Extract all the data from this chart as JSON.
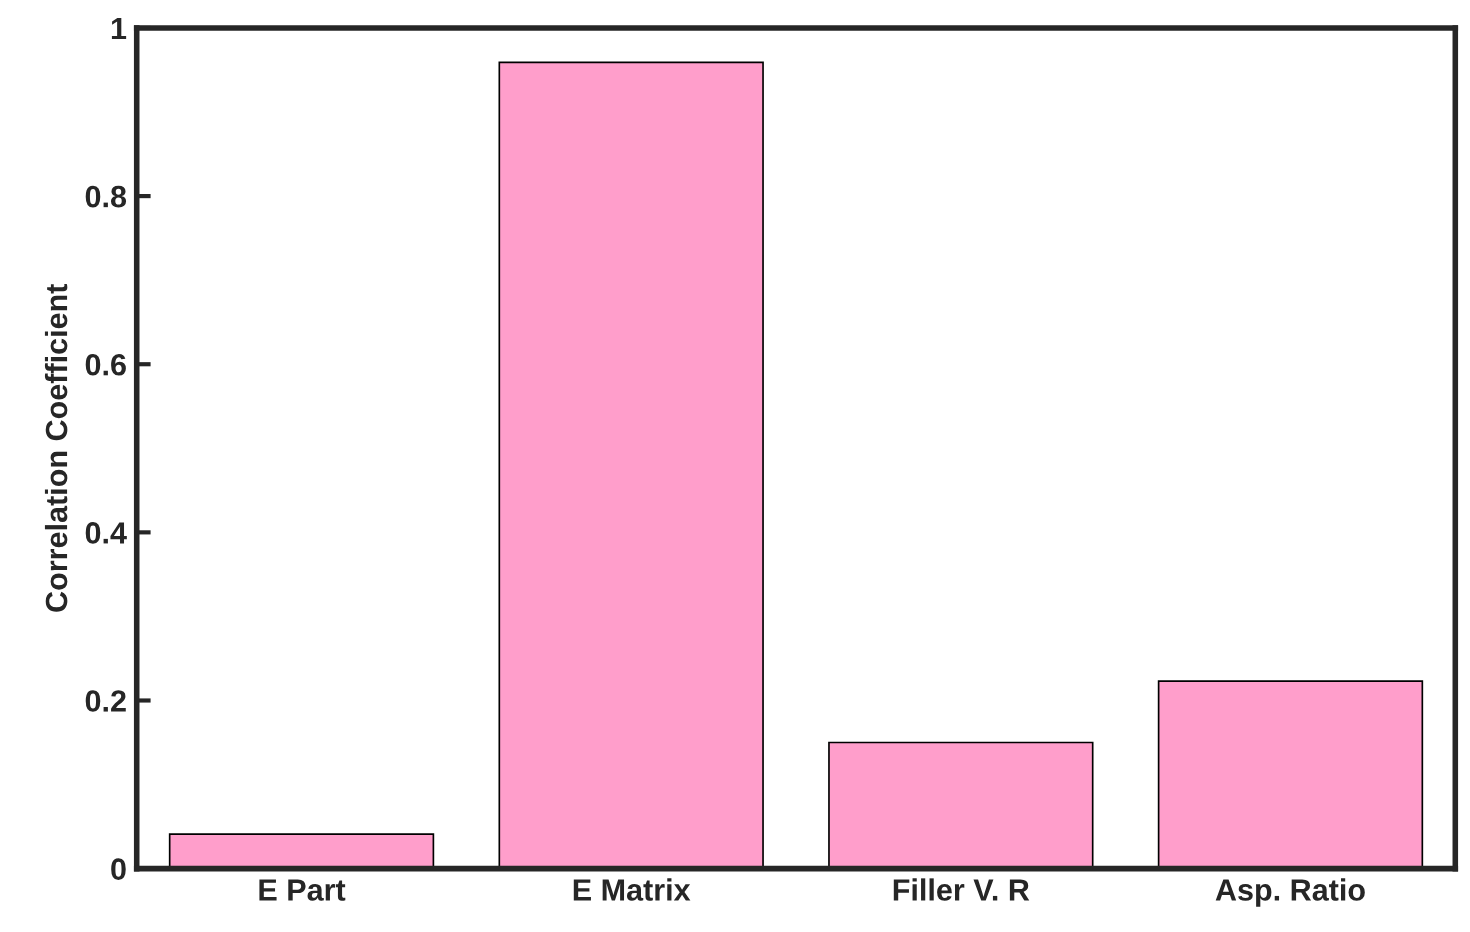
{
  "chart_data": {
    "type": "bar",
    "ylabel": "Correlation Coefficient",
    "categories": [
      "E Part",
      "E Matrix",
      "Filler V. R",
      "Asp. Ratio"
    ],
    "values": [
      0.041,
      0.959,
      0.15,
      0.223
    ],
    "color": "#ff9ecb",
    "ylim": [
      0,
      1
    ],
    "yticks": [
      0,
      0.2,
      0.4,
      0.6,
      0.8,
      1
    ],
    "grid": false,
    "legend": false
  }
}
